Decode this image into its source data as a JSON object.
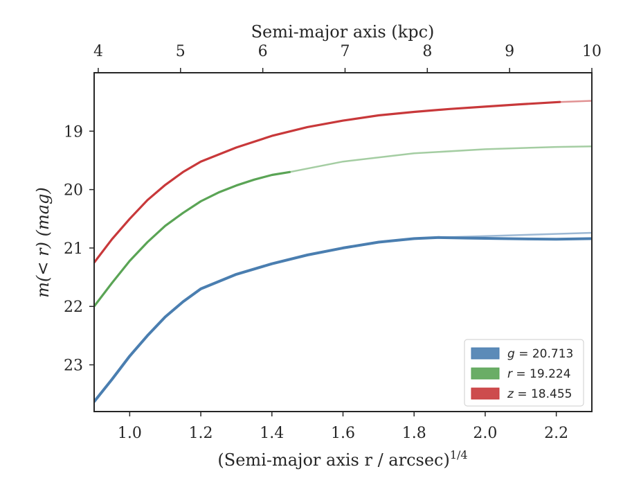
{
  "chart_data": {
    "type": "line",
    "xlabel": "(Semi-major axis r / arcsec)",
    "xlabel_superscript": "1/4",
    "ylabel": "m(< r) (mag)",
    "top_xlabel": "Semi-major axis (kpc)",
    "xlim": [
      0.9,
      2.3
    ],
    "ylim": [
      23.8,
      18.0
    ],
    "y_inverted": true,
    "top_xlim_kpc": [
      3.95,
      10.0
    ],
    "x_ticks": [
      "1.0",
      "1.2",
      "1.4",
      "1.6",
      "1.8",
      "2.0",
      "2.2"
    ],
    "y_ticks": [
      "19",
      "20",
      "21",
      "22",
      "23"
    ],
    "top_ticks": [
      "4",
      "5",
      "6",
      "7",
      "8",
      "9",
      "10"
    ],
    "grid": false,
    "legend_position": "lower-right",
    "series": [
      {
        "name": "g = 20.713",
        "label_var": "g",
        "label_value": "= 20.713",
        "color": "#4a7eb0",
        "x": [
          0.9,
          0.95,
          1.0,
          1.05,
          1.1,
          1.15,
          1.2,
          1.3,
          1.4,
          1.5,
          1.6,
          1.7,
          1.8,
          1.87,
          1.95,
          2.05,
          2.2,
          2.3
        ],
        "y": [
          23.63,
          23.25,
          22.85,
          22.5,
          22.18,
          21.92,
          21.7,
          21.45,
          21.27,
          21.12,
          21.0,
          20.9,
          20.84,
          20.82,
          20.83,
          20.84,
          20.85,
          20.84
        ],
        "faint_extension_x": [
          1.87,
          2.3
        ],
        "faint_extension_y": [
          20.82,
          20.74
        ]
      },
      {
        "name": "r = 19.224",
        "label_var": "r",
        "label_value": "= 19.224",
        "color": "#5aa455",
        "x": [
          0.9,
          0.95,
          1.0,
          1.05,
          1.1,
          1.15,
          1.2,
          1.25,
          1.3,
          1.35,
          1.4,
          1.45
        ],
        "y": [
          22.0,
          21.6,
          21.22,
          20.9,
          20.62,
          20.4,
          20.2,
          20.05,
          19.93,
          19.83,
          19.75,
          19.7
        ],
        "faint_extension_x": [
          1.45,
          1.6,
          1.8,
          2.0,
          2.2,
          2.3
        ],
        "faint_extension_y": [
          19.7,
          19.52,
          19.38,
          19.31,
          19.27,
          19.26
        ]
      },
      {
        "name": "z = 18.455",
        "label_var": "z",
        "label_value": "= 18.455",
        "color": "#c8383a",
        "x": [
          0.9,
          0.95,
          1.0,
          1.05,
          1.1,
          1.15,
          1.2,
          1.3,
          1.4,
          1.5,
          1.6,
          1.7,
          1.8,
          1.9,
          2.0,
          2.1,
          2.21
        ],
        "y": [
          21.25,
          20.85,
          20.5,
          20.18,
          19.92,
          19.7,
          19.52,
          19.28,
          19.08,
          18.93,
          18.82,
          18.73,
          18.67,
          18.62,
          18.58,
          18.54,
          18.5
        ],
        "faint_extension_x": [
          2.21,
          2.3
        ],
        "faint_extension_y": [
          18.5,
          18.48
        ]
      }
    ]
  }
}
